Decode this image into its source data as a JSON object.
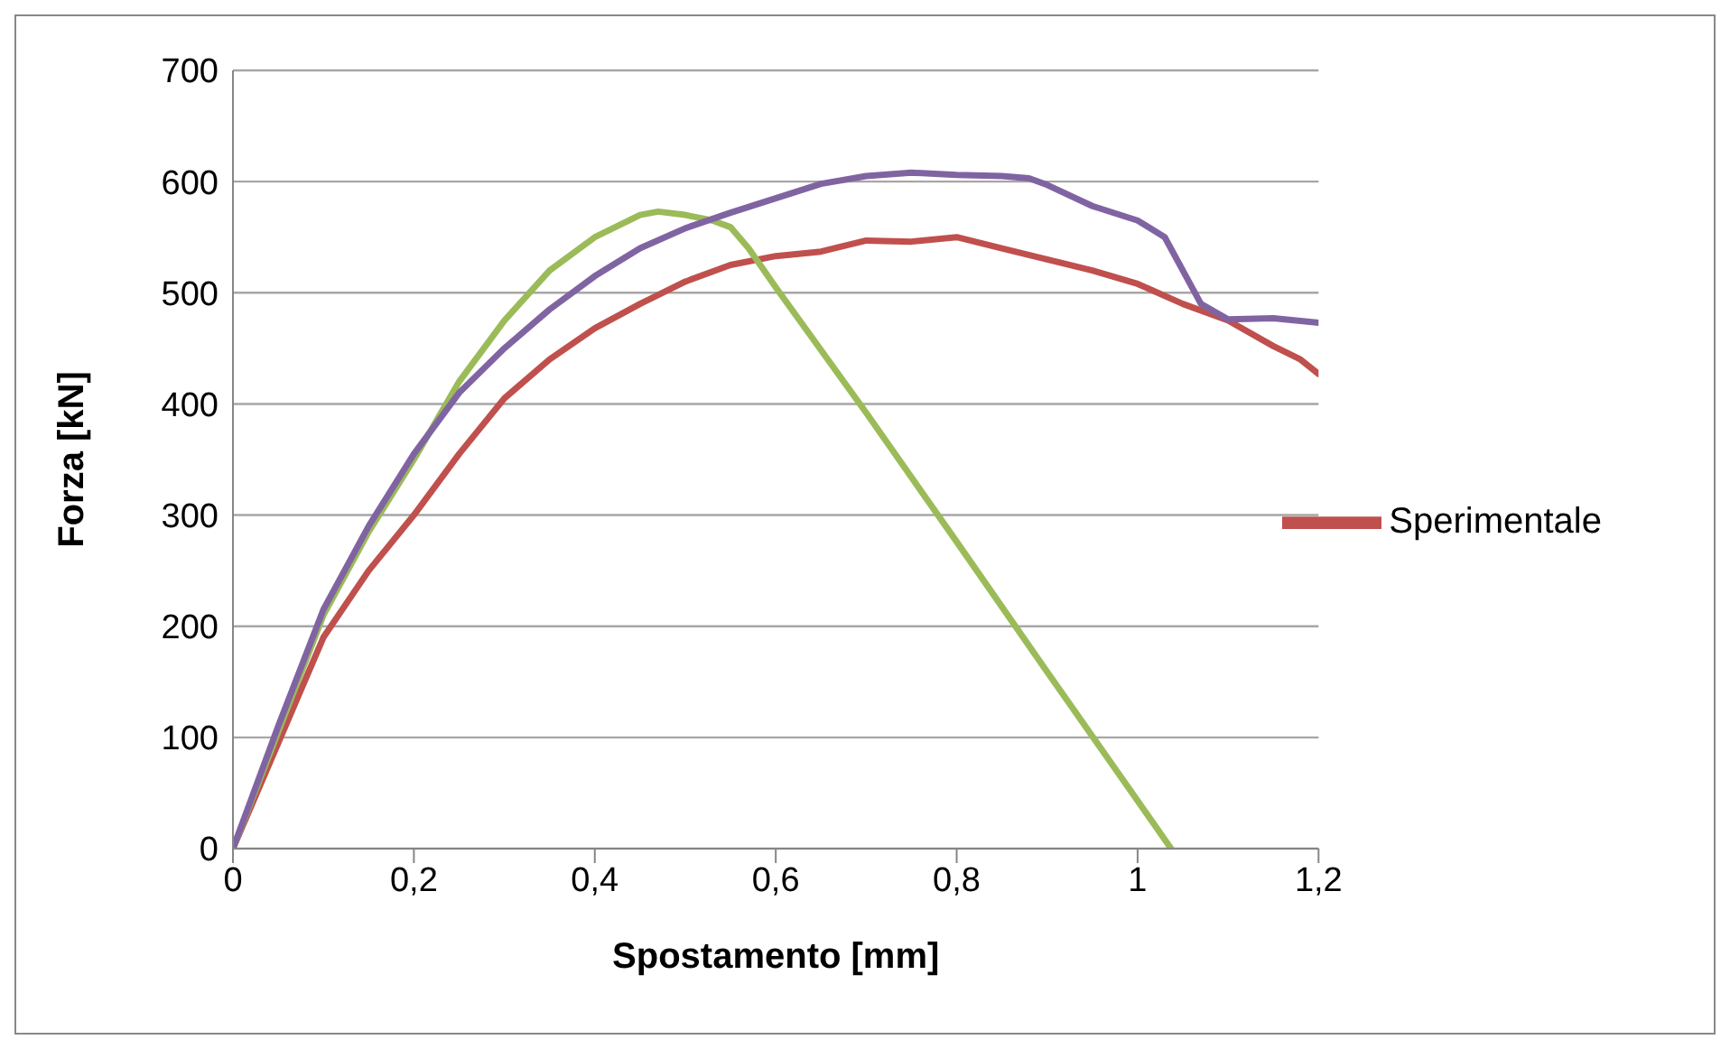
{
  "chart_data": {
    "type": "line",
    "xlabel": "Spostamento [mm]",
    "ylabel": "Forza [kN]",
    "xlim": [
      0,
      1.2
    ],
    "xticks": [
      0,
      {
        "value": 0.2,
        "label": "0,2"
      },
      {
        "value": 0.4,
        "label": "0,4"
      },
      {
        "value": 0.6,
        "label": "0,6"
      },
      {
        "value": 0.8,
        "label": "0,8"
      },
      1,
      {
        "value": 1.2,
        "label": "1,2"
      }
    ],
    "ylim": [
      0,
      700
    ],
    "yticks": [
      0,
      100,
      200,
      300,
      400,
      500,
      600,
      700
    ],
    "grid": "y",
    "legend": "right",
    "marker": "none",
    "line_style": "solid",
    "series": [
      {
        "name": "Sperimentale",
        "color": "#c0504d",
        "x": [
          0,
          0.05,
          0.1,
          0.15,
          0.2,
          0.25,
          0.3,
          0.35,
          0.4,
          0.45,
          0.5,
          0.55,
          0.6,
          0.65,
          0.7,
          0.75,
          0.8,
          0.85,
          0.9,
          0.95,
          1.0,
          1.05,
          1.1,
          1.15,
          1.18,
          1.2
        ],
        "values": [
          0,
          95,
          190,
          250,
          300,
          355,
          405,
          440,
          468,
          490,
          510,
          525,
          533,
          537,
          547,
          546,
          550,
          540,
          530,
          520,
          508,
          490,
          475,
          452,
          440,
          427
        ]
      },
      {
        "color": "#9bbb59",
        "x": [
          0,
          0.05,
          0.1,
          0.15,
          0.2,
          0.25,
          0.3,
          0.35,
          0.4,
          0.45,
          0.47,
          0.5,
          0.53,
          0.55,
          0.57,
          0.6,
          0.7,
          0.8,
          0.9,
          1.0,
          1.037
        ],
        "values": [
          0,
          105,
          210,
          285,
          350,
          420,
          475,
          520,
          550,
          570,
          573,
          570,
          565,
          559,
          540,
          505,
          392,
          276,
          159,
          43,
          0
        ]
      },
      {
        "color": "#8064a2",
        "x": [
          0,
          0.05,
          0.1,
          0.15,
          0.2,
          0.25,
          0.3,
          0.35,
          0.4,
          0.45,
          0.5,
          0.55,
          0.6,
          0.65,
          0.7,
          0.75,
          0.8,
          0.85,
          0.88,
          0.9,
          0.95,
          1.0,
          1.03,
          1.05,
          1.07,
          1.1,
          1.15,
          1.2
        ],
        "values": [
          0,
          110,
          215,
          290,
          355,
          410,
          450,
          485,
          515,
          540,
          558,
          572,
          585,
          598,
          605,
          608,
          606,
          605,
          603,
          597,
          578,
          565,
          550,
          520,
          490,
          476,
          477,
          473
        ]
      }
    ]
  }
}
